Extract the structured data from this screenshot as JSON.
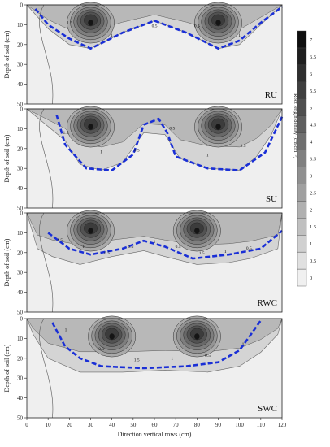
{
  "chart_data": [
    {
      "type": "heatmap",
      "panel_label": "RU",
      "ylabel": "Depth of soil (cm)",
      "yticks": [
        "0",
        "10",
        "20",
        "30",
        "40",
        "50"
      ],
      "ylim": [
        0,
        50
      ],
      "xlim": [
        0,
        120
      ],
      "plant_rows_cm": [
        30,
        90
      ],
      "contour_levels": [
        0.5,
        1,
        1.5,
        2,
        2.5,
        3,
        3.5,
        4,
        4.5,
        5
      ],
      "root_zone_depth_cm": [
        [
          10,
          12
        ],
        [
          20,
          20
        ],
        [
          30,
          22
        ],
        [
          45,
          14
        ],
        [
          60,
          8
        ],
        [
          75,
          14
        ],
        [
          90,
          22
        ],
        [
          100,
          20
        ],
        [
          108,
          12
        ]
      ],
      "boundary_line_depth_cm": [
        [
          4,
          2
        ],
        [
          10,
          10
        ],
        [
          20,
          17
        ],
        [
          30,
          22
        ],
        [
          45,
          14
        ],
        [
          60,
          8
        ],
        [
          75,
          14
        ],
        [
          90,
          22
        ],
        [
          100,
          18
        ],
        [
          110,
          9
        ],
        [
          120,
          1
        ]
      ],
      "contour_labels": [
        "1.5",
        "1",
        "0.5",
        "0.5",
        "1"
      ]
    },
    {
      "type": "heatmap",
      "panel_label": "SU",
      "ylabel": "Depth of soil (cm)",
      "yticks": [
        "0",
        "10",
        "20",
        "30",
        "40",
        "50"
      ],
      "ylim": [
        0,
        50
      ],
      "xlim": [
        0,
        120
      ],
      "plant_rows_cm": [
        30,
        90
      ],
      "contour_levels": [
        0.5,
        1,
        1.5,
        2,
        2.5,
        3,
        3.5,
        4,
        4.5,
        5
      ],
      "root_zone_depth_cm": [
        [
          18,
          16
        ],
        [
          25,
          28
        ],
        [
          35,
          31
        ],
        [
          45,
          27
        ],
        [
          55,
          12
        ],
        [
          65,
          13
        ],
        [
          72,
          25
        ],
        [
          85,
          30
        ],
        [
          100,
          31
        ],
        [
          108,
          24
        ],
        [
          115,
          13
        ]
      ],
      "boundary_line_depth_cm": [
        [
          14,
          3
        ],
        [
          18,
          18
        ],
        [
          28,
          30
        ],
        [
          40,
          31
        ],
        [
          50,
          23
        ],
        [
          55,
          8
        ],
        [
          62,
          5
        ],
        [
          66,
          12
        ],
        [
          70,
          24
        ],
        [
          85,
          30
        ],
        [
          100,
          31
        ],
        [
          112,
          22
        ],
        [
          120,
          4
        ]
      ],
      "contour_labels": [
        "1.5",
        "1",
        "0.5",
        "0.5",
        "1",
        "1.5"
      ]
    },
    {
      "type": "heatmap",
      "panel_label": "RWC",
      "ylabel": "Depth of soil (cm)",
      "yticks": [
        "0",
        "10",
        "20",
        "30",
        "40",
        "50"
      ],
      "ylim": [
        0,
        50
      ],
      "xlim": [
        0,
        120
      ],
      "plant_rows_cm": [
        30,
        80
      ],
      "contour_levels": [
        0.5,
        1,
        1.5,
        2,
        2.5,
        3,
        3.5,
        4,
        4.5,
        5,
        5.5,
        6,
        6.5
      ],
      "root_zone_depth_cm": [
        [
          5,
          18
        ],
        [
          12,
          22
        ],
        [
          25,
          26
        ],
        [
          40,
          22
        ],
        [
          55,
          19
        ],
        [
          65,
          22
        ],
        [
          80,
          26
        ],
        [
          95,
          25
        ],
        [
          105,
          23
        ],
        [
          118,
          18
        ]
      ],
      "boundary_line_depth_cm": [
        [
          10,
          10
        ],
        [
          20,
          18
        ],
        [
          30,
          21
        ],
        [
          45,
          18
        ],
        [
          55,
          14
        ],
        [
          65,
          17
        ],
        [
          78,
          23
        ],
        [
          95,
          21
        ],
        [
          110,
          18
        ],
        [
          120,
          9
        ]
      ],
      "contour_labels": [
        "1.5",
        "1",
        "0.5",
        "1.5",
        "1",
        "0.5",
        "1.5",
        "1",
        "0.5"
      ]
    },
    {
      "type": "heatmap",
      "panel_label": "SWC",
      "ylabel": "Depth of soil (cm)",
      "yticks": [
        "0",
        "10",
        "20",
        "30",
        "40",
        "50"
      ],
      "ylim": [
        0,
        50
      ],
      "xlim": [
        0,
        120
      ],
      "xlabel": "Direction vertical rows (cm)",
      "xticks": [
        "0",
        "10",
        "20",
        "30",
        "40",
        "50",
        "60",
        "70",
        "80",
        "90",
        "100",
        "110",
        "120"
      ],
      "plant_rows_cm": [
        40,
        80
      ],
      "contour_levels": [
        0.5,
        1,
        1.5,
        2,
        2.5,
        3,
        3.5,
        4,
        4.5,
        5,
        5.5,
        6,
        6.5
      ],
      "root_zone_depth_cm": [
        [
          3,
          8
        ],
        [
          10,
          20
        ],
        [
          25,
          27
        ],
        [
          45,
          27
        ],
        [
          65,
          26
        ],
        [
          85,
          27
        ],
        [
          100,
          24
        ],
        [
          110,
          17
        ],
        [
          118,
          8
        ]
      ],
      "boundary_line_depth_cm": [
        [
          12,
          2
        ],
        [
          18,
          14
        ],
        [
          25,
          20
        ],
        [
          35,
          24
        ],
        [
          55,
          25
        ],
        [
          75,
          24
        ],
        [
          90,
          22
        ],
        [
          100,
          16
        ],
        [
          106,
          7
        ],
        [
          110,
          1
        ]
      ],
      "contour_labels": [
        "1",
        "0.5",
        "1.5",
        "1",
        "0.5",
        "1"
      ]
    }
  ],
  "colorbar": {
    "label": "Root length density (cm cm⁻³)",
    "ticks": [
      "0",
      "0.5",
      "1",
      "1.5",
      "2",
      "2.5",
      "3",
      "3.5",
      "4",
      "4.5",
      "5",
      "5.5",
      "6",
      "6.5",
      "7"
    ],
    "vmin": 0,
    "vmax": 7.5
  },
  "colors": {
    "dashed_line": "#1a2fd6",
    "low": "#f0f0f0",
    "high": "#141414"
  }
}
